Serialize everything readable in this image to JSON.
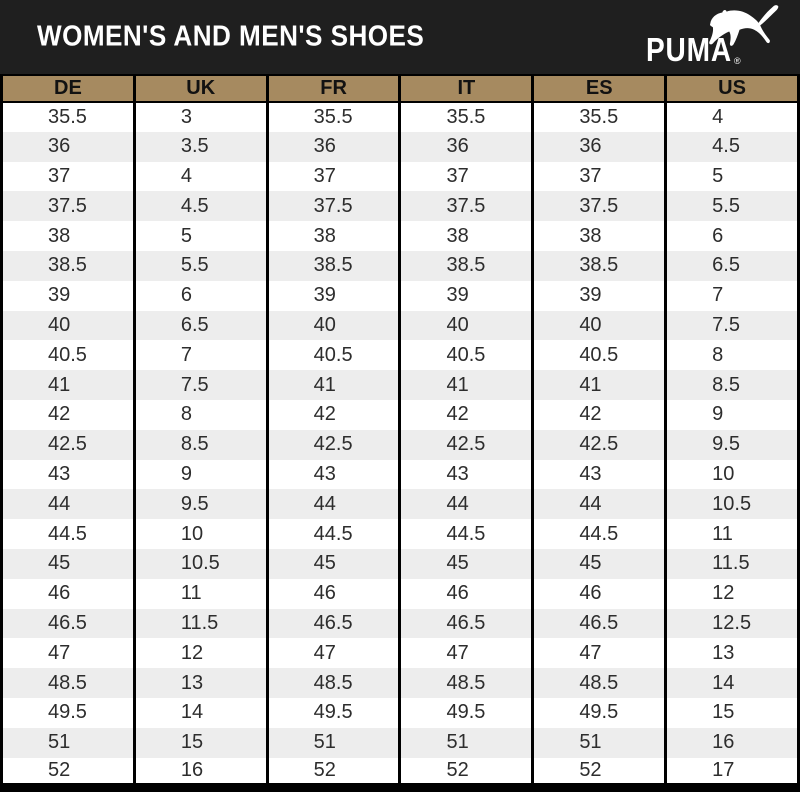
{
  "header": {
    "title": "WOMEN'S AND MEN'S SHOES",
    "brand": "PUMA",
    "registered": "®"
  },
  "colors": {
    "banner_bg": "#1f1f1f",
    "accent_tan": "#a68a60",
    "row_alt_gray": "#ededed",
    "border_black": "#000000",
    "cell_text": "#2d2d2d"
  },
  "table": {
    "columns": [
      "DE",
      "UK",
      "FR",
      "IT",
      "ES",
      "US"
    ],
    "rows": [
      [
        "35.5",
        "3",
        "35.5",
        "35.5",
        "35.5",
        "4"
      ],
      [
        "36",
        "3.5",
        "36",
        "36",
        "36",
        "4.5"
      ],
      [
        "37",
        "4",
        "37",
        "37",
        "37",
        "5"
      ],
      [
        "37.5",
        "4.5",
        "37.5",
        "37.5",
        "37.5",
        "5.5"
      ],
      [
        "38",
        "5",
        "38",
        "38",
        "38",
        "6"
      ],
      [
        "38.5",
        "5.5",
        "38.5",
        "38.5",
        "38.5",
        "6.5"
      ],
      [
        "39",
        "6",
        "39",
        "39",
        "39",
        "7"
      ],
      [
        "40",
        "6.5",
        "40",
        "40",
        "40",
        "7.5"
      ],
      [
        "40.5",
        "7",
        "40.5",
        "40.5",
        "40.5",
        "8"
      ],
      [
        "41",
        "7.5",
        "41",
        "41",
        "41",
        "8.5"
      ],
      [
        "42",
        "8",
        "42",
        "42",
        "42",
        "9"
      ],
      [
        "42.5",
        "8.5",
        "42.5",
        "42.5",
        "42.5",
        "9.5"
      ],
      [
        "43",
        "9",
        "43",
        "43",
        "43",
        "10"
      ],
      [
        "44",
        "9.5",
        "44",
        "44",
        "44",
        "10.5"
      ],
      [
        "44.5",
        "10",
        "44.5",
        "44.5",
        "44.5",
        "11"
      ],
      [
        "45",
        "10.5",
        "45",
        "45",
        "45",
        "11.5"
      ],
      [
        "46",
        "11",
        "46",
        "46",
        "46",
        "12"
      ],
      [
        "46.5",
        "11.5",
        "46.5",
        "46.5",
        "46.5",
        "12.5"
      ],
      [
        "47",
        "12",
        "47",
        "47",
        "47",
        "13"
      ],
      [
        "48.5",
        "13",
        "48.5",
        "48.5",
        "48.5",
        "14"
      ],
      [
        "49.5",
        "14",
        "49.5",
        "49.5",
        "49.5",
        "15"
      ],
      [
        "51",
        "15",
        "51",
        "51",
        "51",
        "16"
      ],
      [
        "52",
        "16",
        "52",
        "52",
        "52",
        "17"
      ]
    ]
  }
}
